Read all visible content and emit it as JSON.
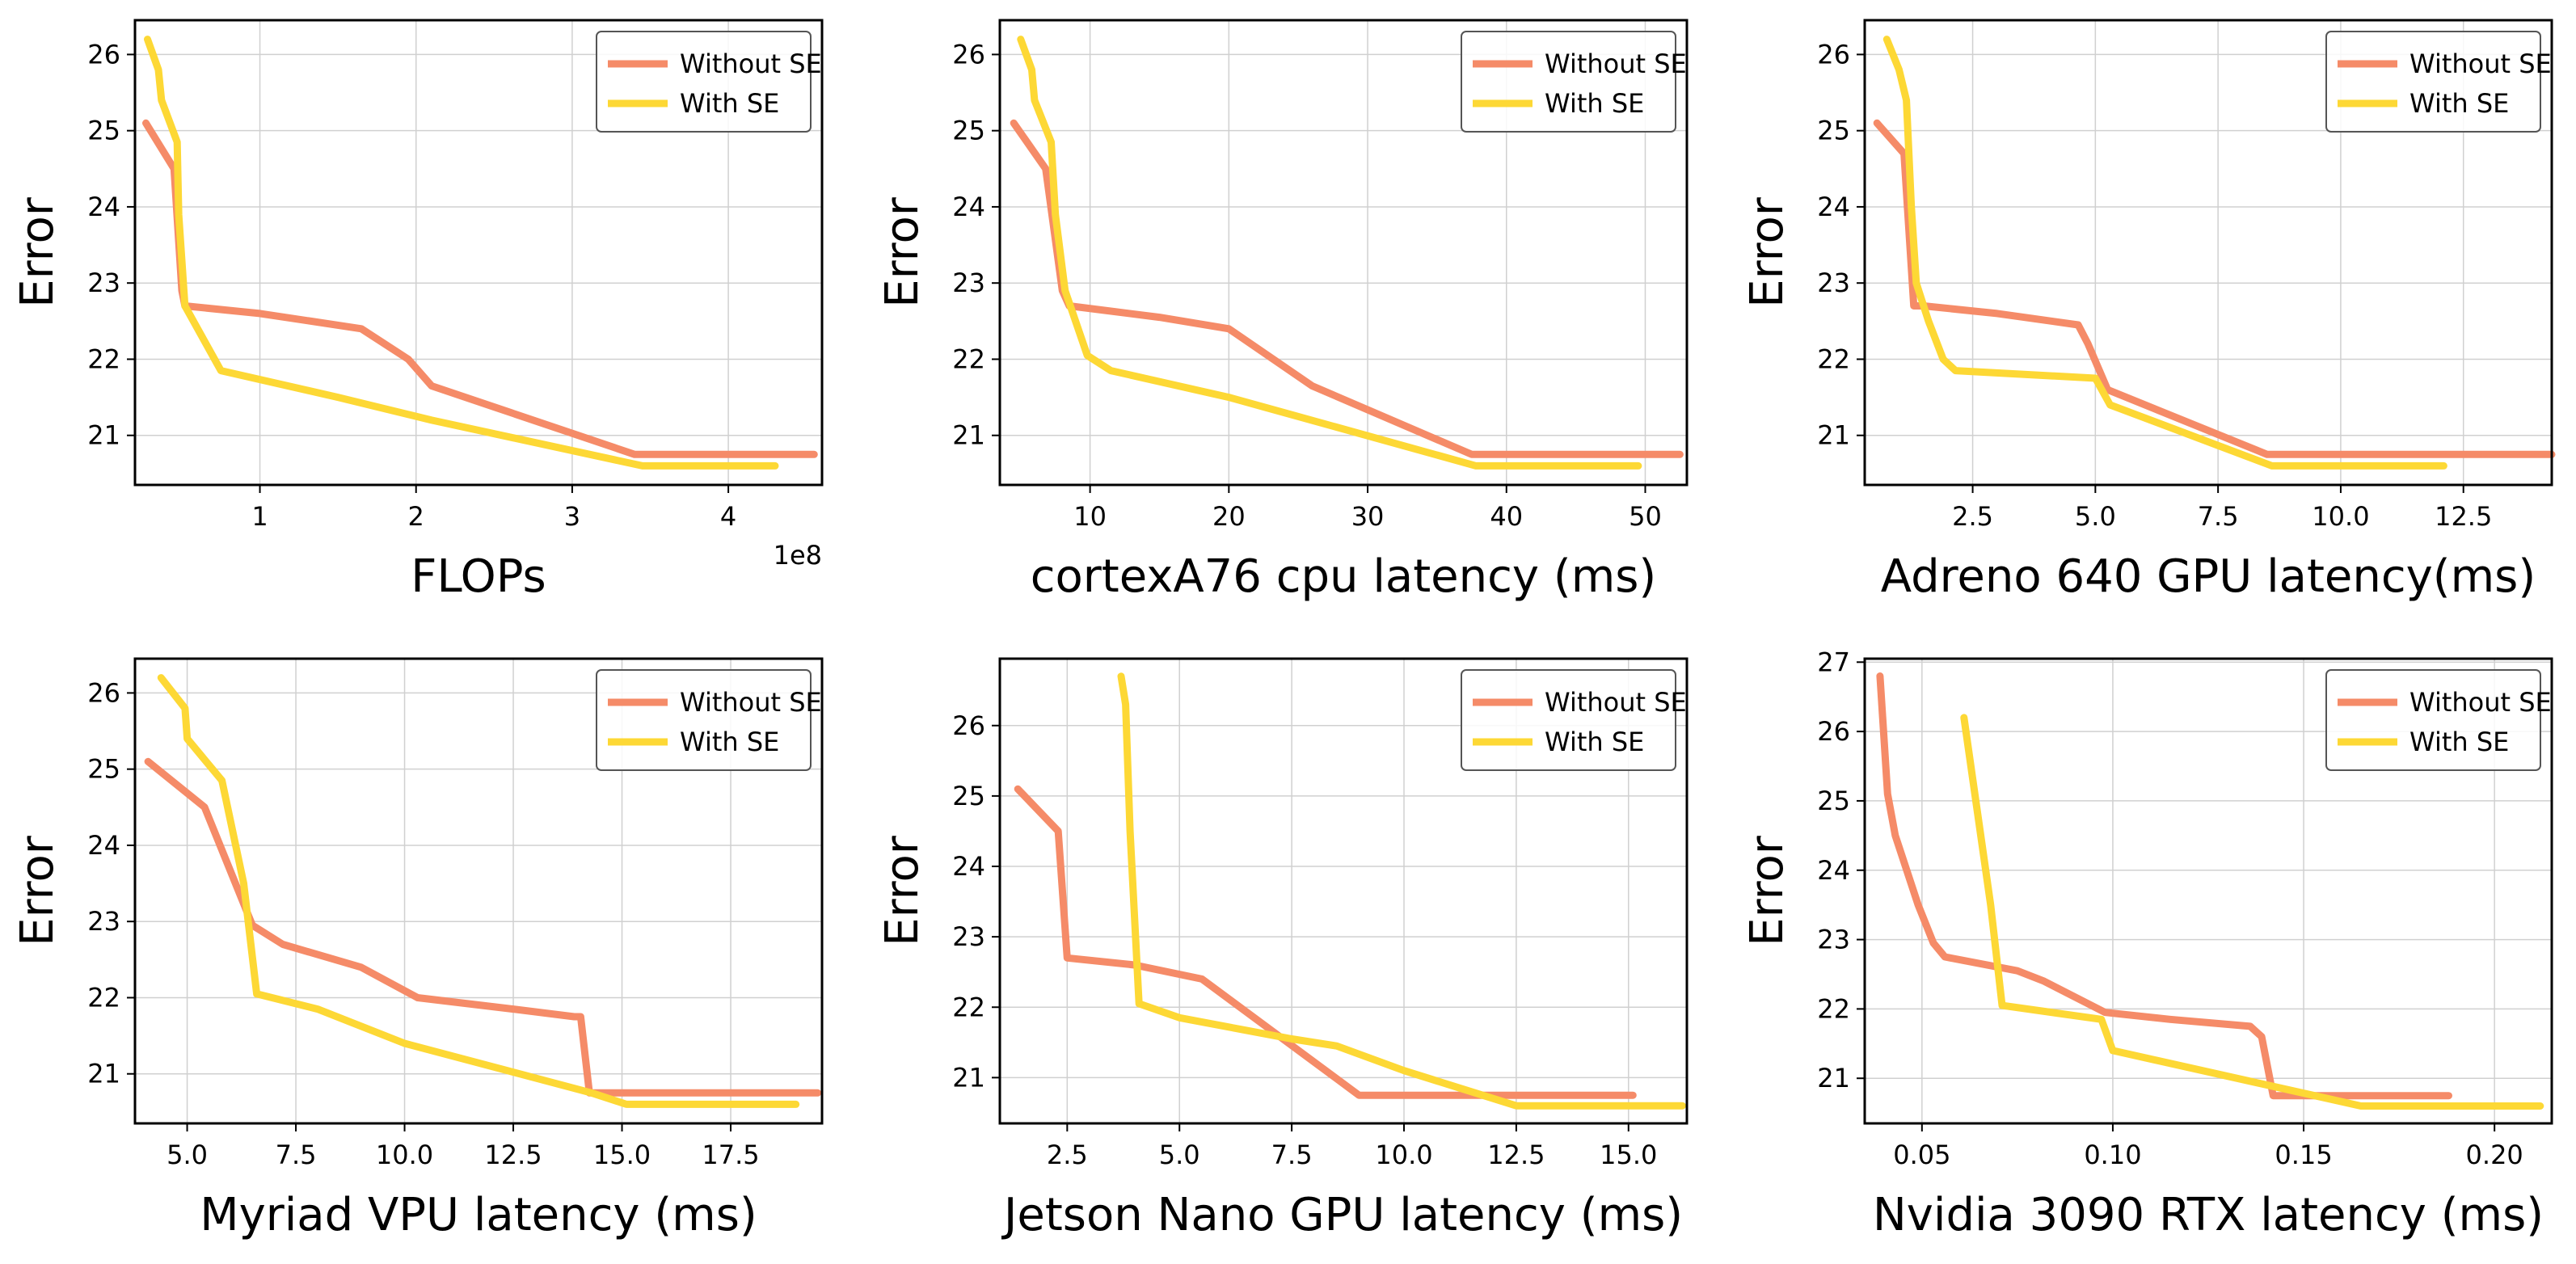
{
  "colors": {
    "without_se": "#f58b68",
    "with_se": "#fdd835",
    "frame": "#000000",
    "grid": "#d0d0d0"
  },
  "legend_labels": [
    "Without SE",
    "With SE"
  ],
  "chart_data": [
    {
      "type": "line",
      "xlabel": "FLOPs",
      "ylabel": "Error",
      "x_scale_label": "1e8",
      "xlim": [
        0.2,
        4.6
      ],
      "ylim": [
        20.35,
        26.45
      ],
      "xticks": [
        1,
        2,
        3,
        4
      ],
      "xtick_labels": [
        "1",
        "2",
        "3",
        "4"
      ],
      "yticks": [
        21,
        22,
        23,
        24,
        25,
        26
      ],
      "ytick_labels": [
        "21",
        "22",
        "23",
        "24",
        "25",
        "26"
      ],
      "grid": true,
      "legend": "upper right",
      "series": [
        {
          "name": "Without SE",
          "x": [
            0.27,
            0.45,
            0.5,
            0.52,
            1.0,
            1.65,
            1.95,
            2.1,
            3.4,
            3.5,
            4.55
          ],
          "y": [
            25.1,
            24.5,
            22.9,
            22.7,
            22.6,
            22.4,
            22.0,
            21.65,
            20.75,
            20.75,
            20.75
          ]
        },
        {
          "name": "With SE",
          "x": [
            0.28,
            0.35,
            0.37,
            0.47,
            0.48,
            0.52,
            0.75,
            1.5,
            2.1,
            3.45,
            4.3
          ],
          "y": [
            26.2,
            25.8,
            25.4,
            24.85,
            23.9,
            22.7,
            21.85,
            21.5,
            21.2,
            20.6,
            20.6
          ]
        }
      ]
    },
    {
      "type": "line",
      "xlabel": "cortexA76 cpu latency (ms)",
      "ylabel": "Error",
      "xlim": [
        3.5,
        53.0
      ],
      "ylim": [
        20.35,
        26.45
      ],
      "xticks": [
        10,
        20,
        30,
        40,
        50
      ],
      "xtick_labels": [
        "10",
        "20",
        "30",
        "40",
        "50"
      ],
      "yticks": [
        21,
        22,
        23,
        24,
        25,
        26
      ],
      "ytick_labels": [
        "21",
        "22",
        "23",
        "24",
        "25",
        "26"
      ],
      "grid": true,
      "legend": "upper right",
      "series": [
        {
          "name": "Without SE",
          "x": [
            4.5,
            6.8,
            8.0,
            8.5,
            15.0,
            20.0,
            26.0,
            37.5,
            52.5
          ],
          "y": [
            25.1,
            24.5,
            22.9,
            22.7,
            22.55,
            22.4,
            21.65,
            20.75,
            20.75
          ]
        },
        {
          "name": "With SE",
          "x": [
            5.0,
            5.8,
            6.0,
            7.2,
            7.5,
            8.2,
            9.8,
            11.5,
            20.0,
            37.8,
            49.5
          ],
          "y": [
            26.2,
            25.8,
            25.4,
            24.85,
            23.9,
            22.9,
            22.05,
            21.85,
            21.5,
            20.6,
            20.6
          ]
        }
      ]
    },
    {
      "type": "line",
      "xlabel": "Adreno 640 GPU latency(ms)",
      "ylabel": "Error",
      "xlim": [
        0.3,
        14.3
      ],
      "ylim": [
        20.35,
        26.45
      ],
      "xticks": [
        2.5,
        5.0,
        7.5,
        10.0,
        12.5
      ],
      "xtick_labels": [
        "2.5",
        "5.0",
        "7.5",
        "10.0",
        "12.5"
      ],
      "yticks": [
        21,
        22,
        23,
        24,
        25,
        26
      ],
      "ytick_labels": [
        "21",
        "22",
        "23",
        "24",
        "25",
        "26"
      ],
      "grid": true,
      "legend": "upper right",
      "series": [
        {
          "name": "Without SE",
          "x": [
            0.55,
            1.1,
            1.3,
            1.5,
            3.0,
            4.65,
            4.85,
            5.25,
            8.5,
            14.3
          ],
          "y": [
            25.1,
            24.7,
            22.7,
            22.7,
            22.6,
            22.45,
            22.2,
            21.6,
            20.75,
            20.75
          ]
        },
        {
          "name": "With SE",
          "x": [
            0.75,
            1.0,
            1.15,
            1.25,
            1.35,
            1.6,
            1.9,
            2.15,
            5.0,
            5.3,
            8.6,
            12.1
          ],
          "y": [
            26.2,
            25.8,
            25.4,
            24.0,
            23.0,
            22.5,
            22.0,
            21.85,
            21.75,
            21.4,
            20.6,
            20.6
          ]
        }
      ]
    },
    {
      "type": "line",
      "xlabel": "Myriad VPU latency (ms)",
      "ylabel": "Error",
      "xlim": [
        3.8,
        19.6
      ],
      "ylim": [
        20.35,
        26.45
      ],
      "xticks": [
        5.0,
        7.5,
        10.0,
        12.5,
        15.0,
        17.5
      ],
      "xtick_labels": [
        "5.0",
        "7.5",
        "10.0",
        "12.5",
        "15.0",
        "17.5"
      ],
      "yticks": [
        21,
        22,
        23,
        24,
        25,
        26
      ],
      "ytick_labels": [
        "21",
        "22",
        "23",
        "24",
        "25",
        "26"
      ],
      "grid": true,
      "legend": "upper right",
      "series": [
        {
          "name": "Without SE",
          "x": [
            4.1,
            5.4,
            6.5,
            7.2,
            9.0,
            10.3,
            12.5,
            13.9,
            14.05,
            14.25,
            19.5
          ],
          "y": [
            25.1,
            24.5,
            22.95,
            22.7,
            22.4,
            22.0,
            21.85,
            21.75,
            21.75,
            20.75,
            20.75
          ]
        },
        {
          "name": "With SE",
          "x": [
            4.4,
            4.95,
            5.0,
            5.8,
            6.3,
            6.6,
            8.0,
            10.0,
            14.3,
            15.1,
            19.0
          ],
          "y": [
            26.2,
            25.8,
            25.4,
            24.85,
            23.5,
            22.05,
            21.85,
            21.4,
            20.75,
            20.6,
            20.6
          ]
        }
      ]
    },
    {
      "type": "line",
      "xlabel": "Jetson Nano GPU latency (ms)",
      "ylabel": "Error",
      "xlim": [
        1.0,
        16.3
      ],
      "ylim": [
        20.35,
        26.95
      ],
      "xticks": [
        2.5,
        5.0,
        7.5,
        10.0,
        12.5,
        15.0
      ],
      "xtick_labels": [
        "2.5",
        "5.0",
        "7.5",
        "10.0",
        "12.5",
        "15.0"
      ],
      "yticks": [
        21,
        22,
        23,
        24,
        25,
        26
      ],
      "ytick_labels": [
        "21",
        "22",
        "23",
        "24",
        "25",
        "26"
      ],
      "grid": true,
      "legend": "upper right",
      "series": [
        {
          "name": "Without SE",
          "x": [
            1.4,
            2.3,
            2.5,
            4.0,
            5.5,
            9.0,
            15.1
          ],
          "y": [
            25.1,
            24.5,
            22.7,
            22.6,
            22.4,
            20.75,
            20.75
          ]
        },
        {
          "name": "With SE",
          "x": [
            3.7,
            3.8,
            3.9,
            4.1,
            5.0,
            7.5,
            8.5,
            10.0,
            12.5,
            16.2
          ],
          "y": [
            26.7,
            26.3,
            24.5,
            22.05,
            21.85,
            21.55,
            21.45,
            21.1,
            20.6,
            20.6
          ]
        }
      ]
    },
    {
      "type": "line",
      "xlabel": "Nvidia 3090 RTX latency (ms)",
      "ylabel": "Error",
      "xlim": [
        0.035,
        0.215
      ],
      "ylim": [
        20.35,
        27.05
      ],
      "xticks": [
        0.05,
        0.1,
        0.15,
        0.2
      ],
      "xtick_labels": [
        "0.05",
        "0.10",
        "0.15",
        "0.20"
      ],
      "yticks": [
        21,
        22,
        23,
        24,
        25,
        26,
        27
      ],
      "ytick_labels": [
        "21",
        "22",
        "23",
        "24",
        "25",
        "26",
        "27"
      ],
      "grid": true,
      "legend": "upper right",
      "series": [
        {
          "name": "Without SE",
          "x": [
            0.039,
            0.041,
            0.043,
            0.049,
            0.053,
            0.056,
            0.075,
            0.082,
            0.098,
            0.115,
            0.136,
            0.139,
            0.142,
            0.15,
            0.188
          ],
          "y": [
            26.8,
            25.1,
            24.5,
            23.5,
            22.95,
            22.75,
            22.55,
            22.4,
            21.95,
            21.85,
            21.75,
            21.6,
            20.75,
            20.75,
            20.75
          ]
        },
        {
          "name": "With SE",
          "x": [
            0.061,
            0.068,
            0.071,
            0.097,
            0.1,
            0.165,
            0.212
          ],
          "y": [
            26.2,
            23.5,
            22.05,
            21.85,
            21.4,
            20.6,
            20.6
          ]
        }
      ]
    }
  ]
}
